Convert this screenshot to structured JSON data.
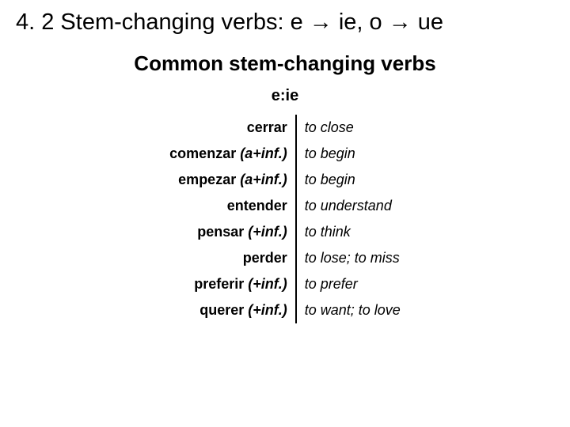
{
  "title_prefix": "4. 2 Stem-changing verbs: e ",
  "title_mid1": " ie, o ",
  "title_suffix": " ue",
  "arrow_glyph": "→",
  "subtitle": "Common stem-changing verbs",
  "category": "e:ie",
  "colors": {
    "background": "#ffffff",
    "text": "#000000",
    "divider": "#000000"
  },
  "fonts": {
    "title_size": 29,
    "subtitle_size": 26,
    "category_size": 20,
    "row_size": 18
  },
  "rows": [
    {
      "verb": "cerrar",
      "paren": "",
      "meaning": "to close"
    },
    {
      "verb": "comenzar",
      "paren": "(a+inf.)",
      "meaning": "to begin"
    },
    {
      "verb": "empezar",
      "paren": "(a+inf.)",
      "meaning": "to begin"
    },
    {
      "verb": "entender",
      "paren": "",
      "meaning": "to understand"
    },
    {
      "verb": "pensar",
      "paren": "(+inf.)",
      "meaning": "to think"
    },
    {
      "verb": "perder",
      "paren": "",
      "meaning": "to lose; to miss"
    },
    {
      "verb": "preferir",
      "paren": "(+inf.)",
      "meaning": "to prefer"
    },
    {
      "verb": "querer",
      "paren": "(+inf.)",
      "meaning": "to want; to love"
    }
  ]
}
